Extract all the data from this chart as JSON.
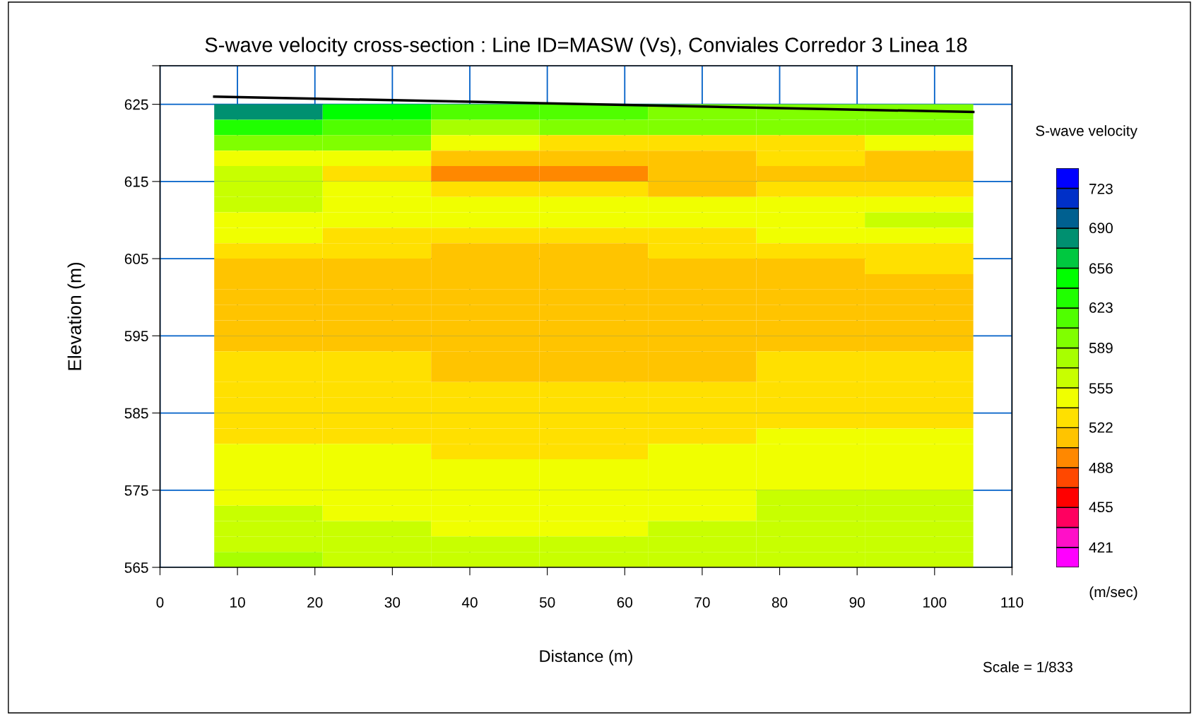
{
  "chart_data": {
    "type": "heatmap",
    "title": "S-wave velocity cross-section : Line ID=MASW (Vs), Conviales Corredor 3 Linea 18",
    "xlabel": "Distance (m)",
    "ylabel": "Elevation (m)",
    "clabel": "S-wave velocity",
    "annotations": [
      "(m/sec)",
      "Scale = 1/833"
    ],
    "x": [
      14,
      28,
      42,
      56,
      70,
      84,
      98
    ],
    "y": [
      624,
      622,
      620,
      618,
      616,
      614,
      612,
      610,
      608,
      606,
      604,
      602,
      600,
      598,
      596,
      594,
      592,
      590,
      588,
      586,
      584,
      582,
      580,
      578,
      576,
      574,
      572,
      570,
      568,
      566
    ],
    "cells": [
      [
        681,
        647,
        614,
        614,
        597,
        597,
        597
      ],
      [
        631,
        614,
        580,
        597,
        597,
        597,
        597
      ],
      [
        597,
        597,
        547,
        530,
        530,
        530,
        547
      ],
      [
        547,
        547,
        513,
        513,
        513,
        530,
        513
      ],
      [
        564,
        530,
        496,
        496,
        513,
        513,
        513
      ],
      [
        564,
        547,
        530,
        530,
        513,
        530,
        530
      ],
      [
        564,
        547,
        547,
        547,
        547,
        547,
        547
      ],
      [
        547,
        547,
        547,
        547,
        547,
        547,
        564
      ],
      [
        547,
        530,
        530,
        530,
        530,
        547,
        547
      ],
      [
        530,
        530,
        513,
        513,
        530,
        530,
        530
      ],
      [
        513,
        513,
        513,
        513,
        513,
        513,
        530
      ],
      [
        513,
        513,
        513,
        513,
        513,
        513,
        513
      ],
      [
        513,
        513,
        513,
        513,
        513,
        513,
        513
      ],
      [
        513,
        513,
        513,
        513,
        513,
        513,
        513
      ],
      [
        513,
        513,
        513,
        513,
        513,
        513,
        513
      ],
      [
        513,
        513,
        513,
        513,
        513,
        513,
        513
      ],
      [
        530,
        530,
        513,
        513,
        513,
        530,
        530
      ],
      [
        530,
        530,
        513,
        513,
        513,
        530,
        530
      ],
      [
        530,
        530,
        530,
        530,
        530,
        530,
        530
      ],
      [
        530,
        530,
        530,
        530,
        530,
        530,
        530
      ],
      [
        530,
        530,
        530,
        530,
        530,
        530,
        530
      ],
      [
        530,
        530,
        530,
        530,
        530,
        547,
        547
      ],
      [
        547,
        547,
        530,
        530,
        547,
        547,
        547
      ],
      [
        547,
        547,
        547,
        547,
        547,
        547,
        547
      ],
      [
        547,
        547,
        547,
        547,
        547,
        547,
        547
      ],
      [
        547,
        547,
        547,
        547,
        547,
        564,
        564
      ],
      [
        564,
        547,
        547,
        547,
        547,
        564,
        564
      ],
      [
        564,
        564,
        547,
        547,
        564,
        564,
        564
      ],
      [
        564,
        564,
        564,
        564,
        564,
        564,
        564
      ],
      [
        580,
        564,
        564,
        564,
        564,
        564,
        564
      ]
    ],
    "colors": [
      "#ff00ff",
      "#ff10c8",
      "#ff0060",
      "#ff0000",
      "#ff4800",
      "#ff8800",
      "#ffc400",
      "#ffe000",
      "#f0ff00",
      "#c8ff00",
      "#a8ff00",
      "#80ff00",
      "#50ff00",
      "#20ff00",
      "#00ff00",
      "#00c840",
      "#009070",
      "#006090",
      "#0030c8",
      "#0000ff"
    ],
    "clim": [
      404,
      740
    ],
    "cticks": [
      421,
      455,
      488,
      522,
      555,
      589,
      623,
      656,
      690,
      723
    ],
    "series": [
      {
        "type": "line",
        "color": "#000000",
        "x": [
          7,
          105
        ],
        "values": [
          626,
          624
        ]
      }
    ],
    "xlim": [
      0,
      110
    ],
    "xticks": [
      0,
      10,
      20,
      30,
      40,
      50,
      60,
      70,
      80,
      90,
      100,
      110
    ],
    "ylim": [
      565,
      630
    ],
    "yticks": [
      {
        "value": 565,
        "label": "565"
      },
      {
        "value": 575,
        "label": "575"
      },
      {
        "value": 585,
        "label": "585"
      },
      {
        "value": 595,
        "label": "595"
      },
      {
        "value": 605,
        "label": "605"
      },
      {
        "value": 615,
        "label": "615"
      },
      {
        "value": 625,
        "label": "625"
      },
      {
        "value": 630,
        "label": null
      }
    ],
    "grid": true
  }
}
